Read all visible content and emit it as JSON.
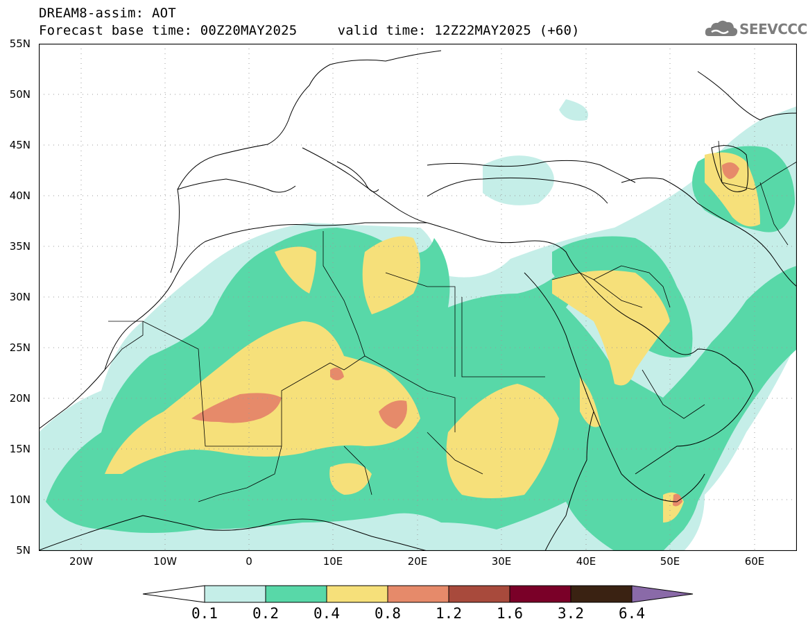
{
  "title": {
    "line1": "DREAM8-assim: AOT",
    "line2": "Forecast base time: 00Z20MAY2025     valid time: 12Z22MAY2025 (+60)"
  },
  "logo": {
    "text": "SEEVCCC",
    "icon": "cloud-logo-icon"
  },
  "map": {
    "region": {
      "lon_min": -25,
      "lon_max": 65,
      "lat_min": 5,
      "lat_max": 55
    },
    "lat_labels": [
      "55N",
      "50N",
      "45N",
      "40N",
      "35N",
      "30N",
      "25N",
      "20N",
      "15N",
      "10N",
      "5N"
    ],
    "lon_labels": [
      "20W",
      "10W",
      "0",
      "10E",
      "20E",
      "30E",
      "40E",
      "50E",
      "60E"
    ],
    "gridlines": "dotted"
  },
  "legend": {
    "levels": [
      "0.1",
      "0.2",
      "0.4",
      "0.8",
      "1.2",
      "1.6",
      "3.2",
      "6.4"
    ],
    "colors": [
      "#ffffff",
      "#c5eee8",
      "#58d8a8",
      "#f6e07a",
      "#e68a6a",
      "#a84a3c",
      "#7a0028",
      "#3a2212",
      "#8a6aa8"
    ]
  }
}
